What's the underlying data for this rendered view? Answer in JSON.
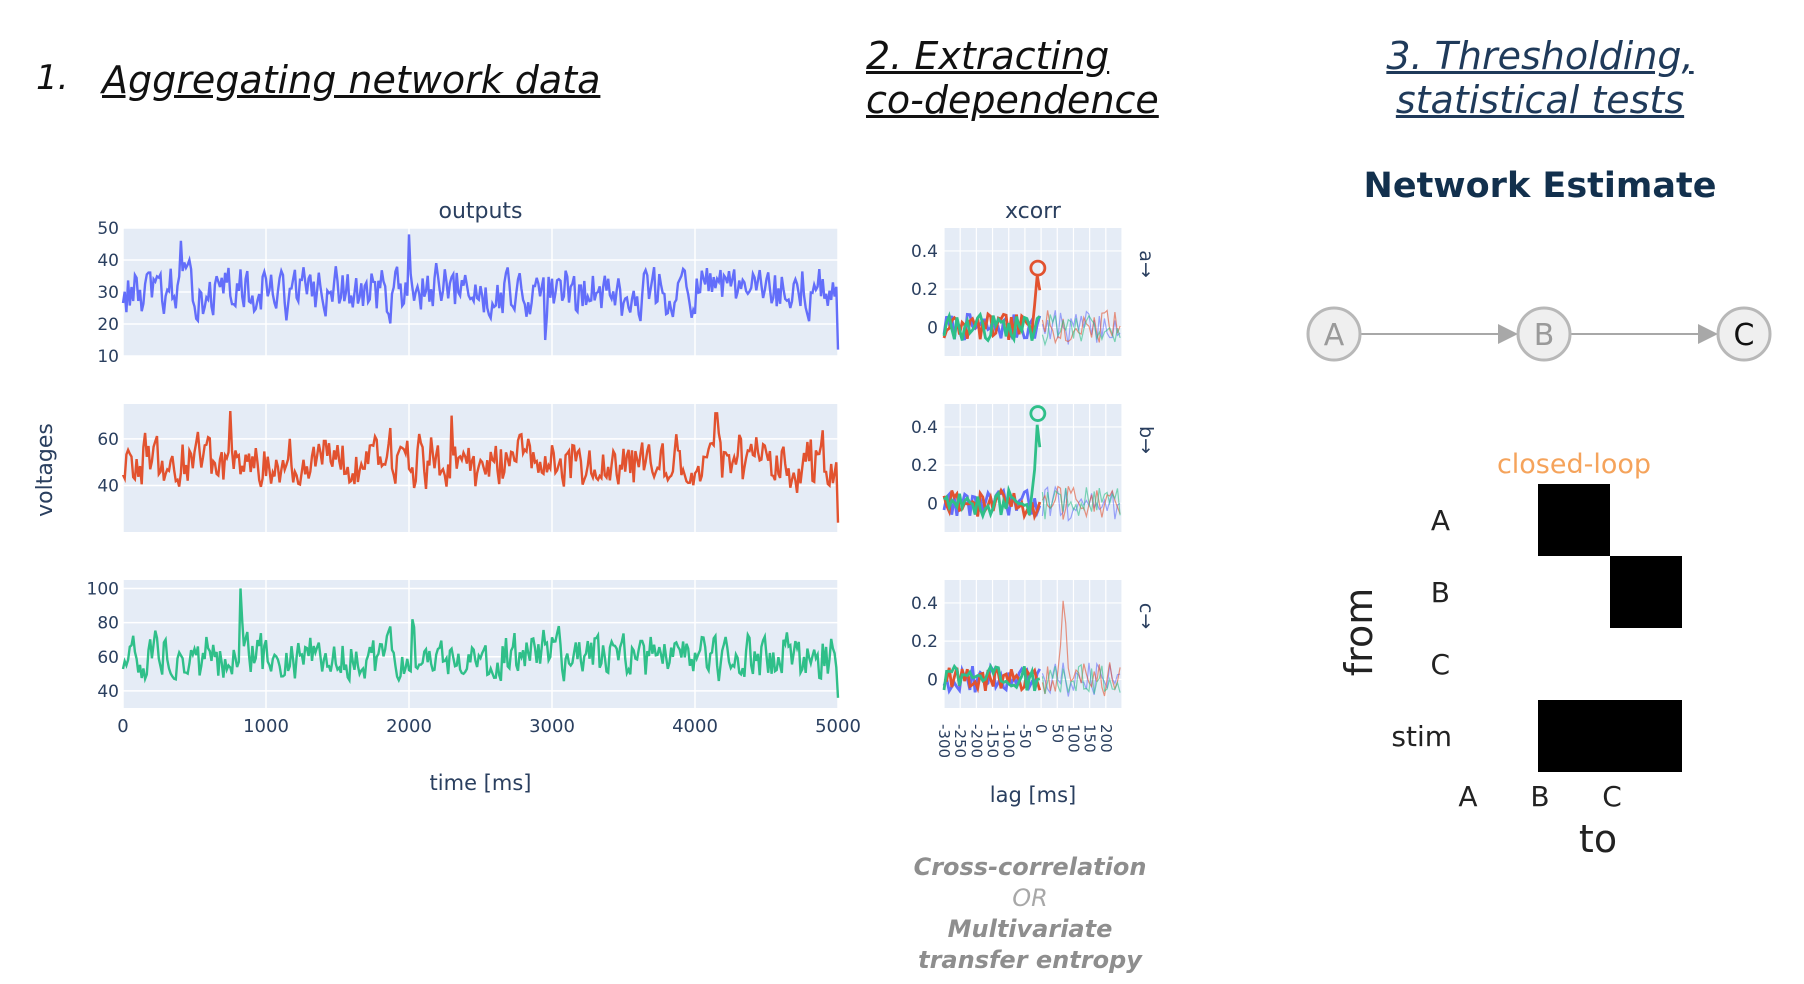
{
  "headings": {
    "step1_number": "1.",
    "step1_title": "Aggregating network data",
    "step2_line1": "2. Extracting",
    "step2_line2": "co-dependence",
    "step3_line1": "3. Thresholding,",
    "step3_line2": "statistical tests",
    "network_title": "Network Estimate"
  },
  "caption": {
    "line1": "Cross-correlation",
    "line2": "OR",
    "line3": "Multivariate",
    "line4": "transfer entropy"
  },
  "colors": {
    "a": "#636efa",
    "b": "#e2522f",
    "c": "#2fbf89",
    "plot_bg": "#e5ecf6",
    "closed_loop": "#f5a35b"
  },
  "chart_data": [
    {
      "type": "line",
      "title": "outputs",
      "xlabel": "time [ms]",
      "ylabel": "voltages",
      "xlim": [
        0,
        5000
      ],
      "x_ticks": [
        "0",
        "1000",
        "2000",
        "3000",
        "4000",
        "5000"
      ],
      "panels": [
        {
          "series": "a",
          "ylim": [
            10,
            50
          ],
          "y_ticks": [
            "10",
            "20",
            "30",
            "40",
            "50"
          ],
          "mean": 30,
          "spread": 7,
          "spikes": [
            [
              400,
              46
            ],
            [
              2000,
              48
            ],
            [
              2950,
              15
            ],
            [
              5000,
              12
            ]
          ]
        },
        {
          "series": "b",
          "ylim": [
            20,
            75
          ],
          "y_ticks": [
            "40",
            "60"
          ],
          "mean": 50,
          "spread": 10,
          "spikes": [
            [
              750,
              72
            ],
            [
              2300,
              70
            ],
            [
              4150,
              71
            ],
            [
              5000,
              24
            ]
          ]
        },
        {
          "series": "c",
          "ylim": [
            30,
            105
          ],
          "y_ticks": [
            "40",
            "60",
            "80",
            "100"
          ],
          "mean": 60,
          "spread": 12,
          "spikes": [
            [
              820,
              100
            ],
            [
              2020,
              82
            ],
            [
              3050,
              78
            ],
            [
              5000,
              36
            ]
          ]
        }
      ]
    },
    {
      "type": "line",
      "title": "xcorr",
      "xlabel": "lag [ms]",
      "xlim": [
        -300,
        250
      ],
      "x_ticks": [
        "-300",
        "-250",
        "-200",
        "-150",
        "-100",
        "-50",
        "0",
        "50",
        "100",
        "150",
        "200"
      ],
      "panels": [
        {
          "label": "a→",
          "ylim": [
            -0.15,
            0.52
          ],
          "y_ticks": [
            "0",
            "0.2",
            "0.4"
          ],
          "peak": {
            "series": "b",
            "lag": -10,
            "value": 0.31
          }
        },
        {
          "label": "b→",
          "ylim": [
            -0.15,
            0.52
          ],
          "y_ticks": [
            "0",
            "0.2",
            "0.4"
          ],
          "peak": {
            "series": "c",
            "lag": -10,
            "value": 0.47
          }
        },
        {
          "label": "c→",
          "ylim": [
            -0.15,
            0.52
          ],
          "y_ticks": [
            "0",
            "0.2",
            "0.4"
          ],
          "peak": {
            "series": "b",
            "lag": 70,
            "value": 0.47
          }
        }
      ]
    },
    {
      "type": "heatmap",
      "title": "closed-loop",
      "xlabel": "to",
      "ylabel": "from",
      "rows": [
        "A",
        "B",
        "C",
        "stim"
      ],
      "cols": [
        "A",
        "B",
        "C"
      ],
      "values": [
        [
          0,
          1,
          0
        ],
        [
          0,
          0,
          1
        ],
        [
          0,
          0,
          0
        ],
        [
          0,
          1,
          1
        ]
      ]
    }
  ],
  "network": {
    "nodes": [
      "A",
      "B",
      "C"
    ],
    "edges": [
      [
        "A",
        "B"
      ],
      [
        "B",
        "C"
      ]
    ]
  }
}
